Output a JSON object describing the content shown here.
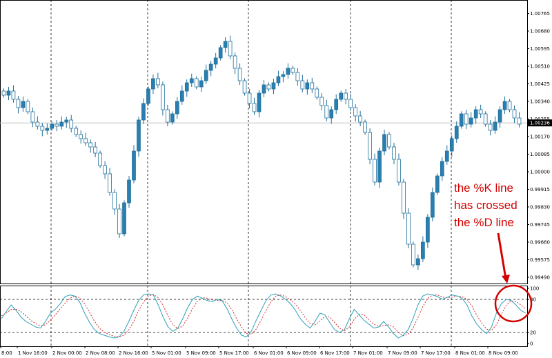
{
  "chart_data": {
    "type": "candlestick",
    "price_axis": {
      "ticks": [
        "1.00765",
        "1.00680",
        "1.00595",
        "1.00510",
        "1.00425",
        "1.00340",
        "1.00255",
        "1.00170",
        "1.00085",
        "1.00000",
        "0.99915",
        "0.99830",
        "0.99745",
        "0.99660",
        "0.99575",
        "0.99490"
      ],
      "range": [
        0.9946,
        1.0083
      ],
      "current_price": 1.00236,
      "current_price_label": "1.00236"
    },
    "time_axis": {
      "labels": [
        "8:00",
        "1 Nov 16:00",
        "2 Nov 00:00",
        "2 Nov 08:00",
        "2 Nov 16:00",
        "5 Nov 01:00",
        "5 Nov 09:00",
        "5 Nov 17:00",
        "6 Nov 01:00",
        "6 Nov 09:00",
        "6 Nov 17:00",
        "7 Nov 01:00",
        "7 Nov 09:00",
        "7 Nov 17:00",
        "8 Nov 01:00",
        "8 Nov 09:00"
      ],
      "day_separators_after": [
        "1 Nov 16:00",
        "2 Nov 16:00",
        "5 Nov 17:00",
        "6 Nov 17:00",
        "7 Nov 17:00"
      ]
    },
    "candle_closes": [
      1.0037,
      1.0039,
      1.0035,
      1.0031,
      1.0034,
      1.0029,
      1.0024,
      1.0022,
      1.002,
      1.0021,
      1.0023,
      1.0022,
      1.0024,
      1.0025,
      1.0021,
      1.0018,
      1.0016,
      1.0014,
      1.0012,
      1.0009,
      1.0003,
      0.9999,
      0.999,
      0.9982,
      0.997,
      0.9985,
      0.9996,
      1.001,
      1.0025,
      1.0033,
      1.004,
      1.0045,
      1.0042,
      1.003,
      1.0024,
      1.0028,
      1.0034,
      1.0039,
      1.0043,
      1.0045,
      1.0041,
      1.0044,
      1.0049,
      1.0052,
      1.0055,
      1.006,
      1.0063,
      1.0056,
      1.005,
      1.0044,
      1.0038,
      1.0033,
      1.0029,
      1.0038,
      1.0042,
      1.004,
      1.0043,
      1.0046,
      1.0047,
      1.005,
      1.0048,
      1.0044,
      1.004,
      1.0043,
      1.004,
      1.0036,
      1.0032,
      1.0026,
      1.003,
      1.0035,
      1.0038,
      1.0035,
      1.0031,
      1.0027,
      1.0024,
      1.0019,
      1.0006,
      0.9995,
      1.001,
      1.0018,
      1.0012,
      1.0006,
      0.9995,
      0.998,
      0.9965,
      0.9955,
      0.9958,
      0.9966,
      0.9978,
      0.999,
      0.9998,
      1.0005,
      1.001,
      1.0016,
      1.0022,
      1.0028,
      1.0023,
      1.0026,
      1.003,
      1.0028,
      1.0023,
      1.002,
      1.0024,
      1.003,
      1.0034,
      1.003,
      1.0026,
      1.0023
    ],
    "stochastic": {
      "levels": [
        0,
        20,
        80,
        100
      ],
      "level_labels": [
        "0",
        "20",
        "80",
        "100"
      ],
      "k": [
        45,
        58,
        70,
        60,
        48,
        40,
        35,
        30,
        28,
        40,
        55,
        62,
        72,
        85,
        88,
        86,
        75,
        55,
        38,
        25,
        18,
        15,
        12,
        10,
        12,
        22,
        40,
        60,
        78,
        88,
        90,
        88,
        70,
        48,
        30,
        22,
        28,
        45,
        65,
        80,
        86,
        82,
        78,
        76,
        80,
        78,
        64,
        45,
        28,
        15,
        12,
        22,
        42,
        60,
        78,
        88,
        90,
        86,
        80,
        72,
        60,
        45,
        35,
        28,
        40,
        55,
        52,
        38,
        25,
        20,
        25,
        45,
        62,
        52,
        42,
        35,
        28,
        30,
        40,
        30,
        18,
        10,
        15,
        25,
        45,
        70,
        86,
        90,
        88,
        85,
        80,
        84,
        88,
        86,
        82,
        70,
        50,
        35,
        25,
        18,
        30,
        55,
        72,
        80,
        78,
        70,
        60,
        55
      ],
      "d": [
        50,
        55,
        62,
        62,
        58,
        50,
        42,
        36,
        32,
        34,
        42,
        52,
        63,
        73,
        82,
        86,
        83,
        72,
        56,
        40,
        28,
        20,
        16,
        13,
        12,
        15,
        25,
        40,
        60,
        75,
        86,
        89,
        83,
        69,
        50,
        34,
        27,
        32,
        46,
        63,
        77,
        83,
        82,
        79,
        78,
        78,
        74,
        62,
        45,
        30,
        18,
        17,
        26,
        42,
        60,
        76,
        86,
        88,
        85,
        79,
        71,
        60,
        47,
        36,
        34,
        41,
        49,
        48,
        38,
        28,
        23,
        30,
        44,
        53,
        52,
        43,
        35,
        31,
        32,
        34,
        30,
        20,
        14,
        17,
        28,
        47,
        67,
        82,
        88,
        88,
        84,
        83,
        84,
        86,
        85,
        80,
        68,
        51,
        37,
        26,
        24,
        34,
        52,
        69,
        77,
        76,
        70,
        62
      ]
    },
    "legend": null
  },
  "annotation": {
    "lines": [
      "the %K line",
      "has crossed",
      "the %D line"
    ],
    "color": "#d40000"
  },
  "colors": {
    "bull": "#2a7fb0",
    "bear": "#ffffff",
    "outline": "#1f6e9a",
    "k_line": "#2aa0b8",
    "d_line": "#d03030",
    "grid": "#000000",
    "price_line": "#c0c0c0"
  }
}
